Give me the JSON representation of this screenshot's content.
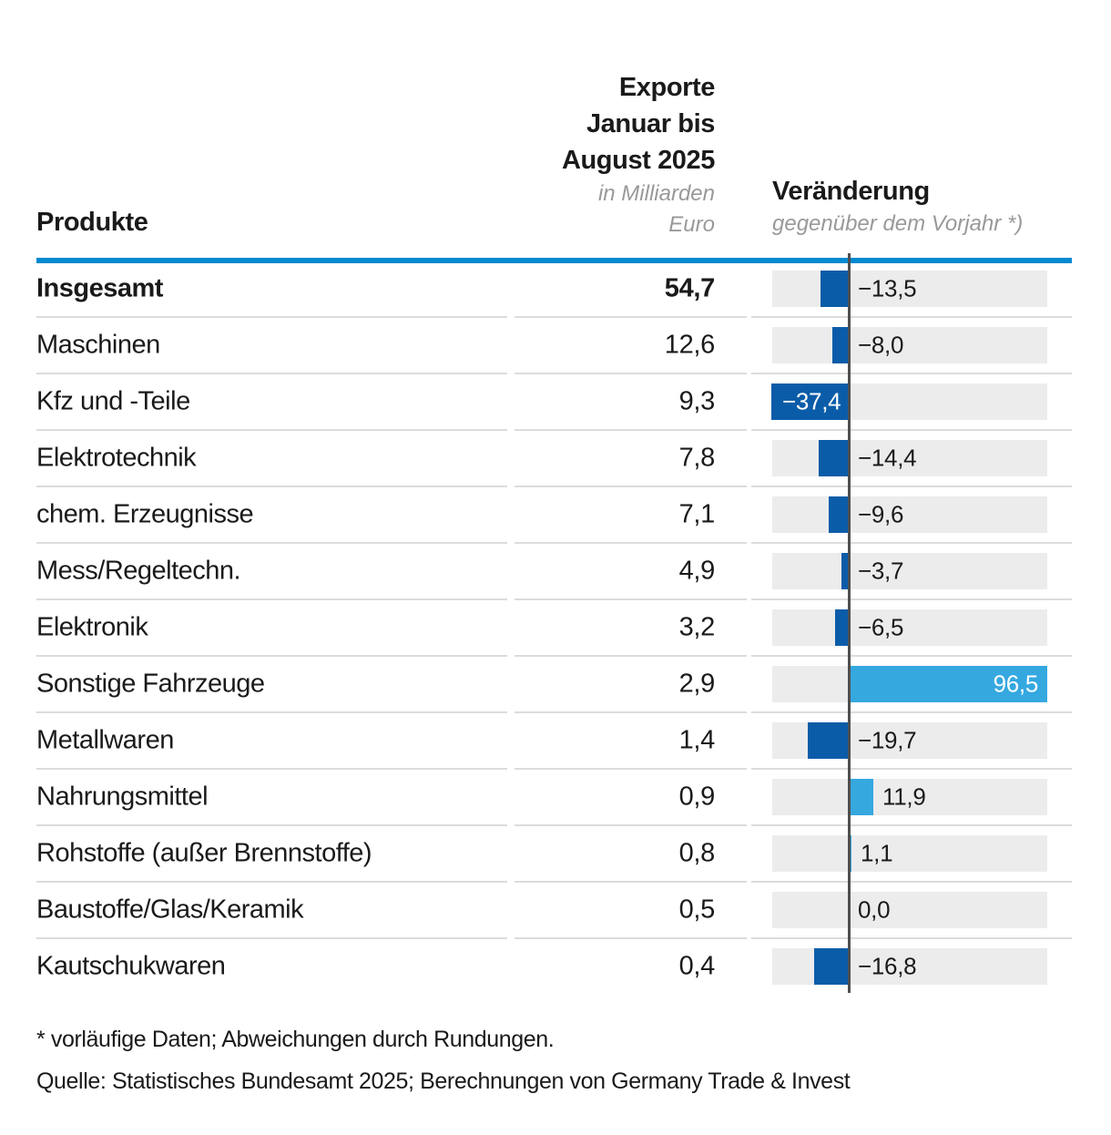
{
  "header": {
    "title_lines": [
      "Exporte",
      "Januar bis",
      "August 2025"
    ],
    "subtitle_lines": [
      "in Milliarden",
      "Euro"
    ],
    "products_label": "Produkte",
    "change_title": "Veränderung",
    "change_subtitle": "gegenüber dem Vorjahr *)"
  },
  "rows": [
    {
      "label": "Insgesamt",
      "value": "54,7",
      "change": "−13,5",
      "change_num": -13.5,
      "bold": true,
      "label_pos": "outside"
    },
    {
      "label": "Maschinen",
      "value": "12,6",
      "change": "−8,0",
      "change_num": -8.0,
      "bold": false,
      "label_pos": "outside"
    },
    {
      "label": "Kfz und -Teile",
      "value": "9,3",
      "change": "−37,4",
      "change_num": -37.4,
      "bold": false,
      "label_pos": "inside"
    },
    {
      "label": "Elektrotechnik",
      "value": "7,8",
      "change": "−14,4",
      "change_num": -14.4,
      "bold": false,
      "label_pos": "outside"
    },
    {
      "label": "chem. Erzeugnisse",
      "value": "7,1",
      "change": "−9,6",
      "change_num": -9.6,
      "bold": false,
      "label_pos": "outside"
    },
    {
      "label": "Mess/Regeltechn.",
      "value": "4,9",
      "change": "−3,7",
      "change_num": -3.7,
      "bold": false,
      "label_pos": "outside"
    },
    {
      "label": "Elektronik",
      "value": "3,2",
      "change": "−6,5",
      "change_num": -6.5,
      "bold": false,
      "label_pos": "outside"
    },
    {
      "label": "Sonstige Fahrzeuge",
      "value": "2,9",
      "change": "96,5",
      "change_num": 96.5,
      "bold": false,
      "label_pos": "inside"
    },
    {
      "label": "Metallwaren",
      "value": "1,4",
      "change": "−19,7",
      "change_num": -19.7,
      "bold": false,
      "label_pos": "outside"
    },
    {
      "label": "Nahrungsmittel",
      "value": "0,9",
      "change": "11,9",
      "change_num": 11.9,
      "bold": false,
      "label_pos": "outside"
    },
    {
      "label": "Rohstoffe (außer Brennstoffe)",
      "value": "0,8",
      "change": "1,1",
      "change_num": 1.1,
      "bold": false,
      "label_pos": "outside"
    },
    {
      "label": "Baustoffe/Glas/Keramik",
      "value": "0,5",
      "change": "0,0",
      "change_num": 0.0,
      "bold": false,
      "label_pos": "outside"
    },
    {
      "label": "Kautschukwaren",
      "value": "0,4",
      "change": "−16,8",
      "change_num": -16.8,
      "bold": false,
      "label_pos": "outside"
    }
  ],
  "chart_data": {
    "type": "bar",
    "orientation": "horizontal",
    "title": "Exporte Januar bis August 2025",
    "value_column_unit": "in Milliarden Euro",
    "change_column_label": "Veränderung gegenüber dem Vorjahr *)",
    "categories": [
      "Insgesamt",
      "Maschinen",
      "Kfz und -Teile",
      "Elektrotechnik",
      "chem. Erzeugnisse",
      "Mess/Regeltechn.",
      "Elektronik",
      "Sonstige Fahrzeuge",
      "Metallwaren",
      "Nahrungsmittel",
      "Rohstoffe (außer Brennstoffe)",
      "Baustoffe/Glas/Keramik",
      "Kautschukwaren"
    ],
    "series": [
      {
        "name": "Exporte Januar bis August 2025, in Milliarden Euro",
        "values": [
          54.7,
          12.6,
          9.3,
          7.8,
          7.1,
          4.9,
          3.2,
          2.9,
          1.4,
          0.9,
          0.8,
          0.5,
          0.4
        ]
      },
      {
        "name": "Veränderung gegenüber dem Vorjahr *)",
        "values": [
          -13.5,
          -8.0,
          -37.4,
          -14.4,
          -9.6,
          -3.7,
          -6.5,
          96.5,
          -19.7,
          11.9,
          1.1,
          0.0,
          -16.8
        ]
      }
    ],
    "xlim": [
      -37.4,
      96.5
    ],
    "grid": false,
    "legend": false
  },
  "footnote": "* vorläufige Daten; Abweichungen durch Rundungen.",
  "source": "Quelle: Statistisches Bundesamt 2025; Berechnungen von Germany Trade & Invest",
  "colors": {
    "rule_blue": "#0089d0",
    "bar_dark": "#0b5ca8",
    "bar_light": "#35a8e0",
    "bar_bg": "#ececec",
    "divider": "#dcdcdc",
    "axis": "#4f4f4f",
    "text": "#1a1a1a",
    "muted": "#999999"
  }
}
